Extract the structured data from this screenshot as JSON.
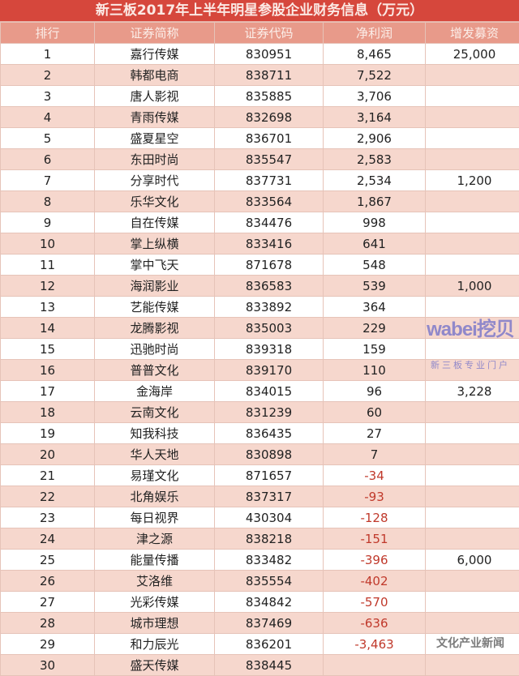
{
  "title": "新三板2017年上半年明星参股企业财务信息（万元）",
  "columns": [
    "排行",
    "证券简称",
    "证券代码",
    "净利润",
    "增发募资"
  ],
  "rows": [
    [
      "1",
      "嘉行传媒",
      "830951",
      "8,465",
      "25,000"
    ],
    [
      "2",
      "韩都电商",
      "838711",
      "7,522",
      ""
    ],
    [
      "3",
      "唐人影视",
      "835885",
      "3,706",
      ""
    ],
    [
      "4",
      "青雨传媒",
      "832698",
      "3,164",
      ""
    ],
    [
      "5",
      "盛夏星空",
      "836701",
      "2,906",
      ""
    ],
    [
      "6",
      "东田时尚",
      "835547",
      "2,583",
      ""
    ],
    [
      "7",
      "分享时代",
      "837731",
      "2,534",
      "1,200"
    ],
    [
      "8",
      "乐华文化",
      "833564",
      "1,867",
      ""
    ],
    [
      "9",
      "自在传媒",
      "834476",
      "998",
      ""
    ],
    [
      "10",
      "掌上纵横",
      "833416",
      "641",
      ""
    ],
    [
      "11",
      "掌中飞天",
      "871678",
      "548",
      ""
    ],
    [
      "12",
      "海润影业",
      "836583",
      "539",
      "1,000"
    ],
    [
      "13",
      "艺能传媒",
      "833892",
      "364",
      ""
    ],
    [
      "14",
      "龙腾影视",
      "835003",
      "229",
      ""
    ],
    [
      "15",
      "迅驰时尚",
      "839318",
      "159",
      ""
    ],
    [
      "16",
      "普普文化",
      "839170",
      "110",
      ""
    ],
    [
      "17",
      "金海岸",
      "834015",
      "96",
      "3,228"
    ],
    [
      "18",
      "云南文化",
      "831239",
      "60",
      ""
    ],
    [
      "19",
      "知我科技",
      "836435",
      "27",
      ""
    ],
    [
      "20",
      "华人天地",
      "830898",
      "7",
      ""
    ],
    [
      "21",
      "易瑾文化",
      "871657",
      "-34",
      ""
    ],
    [
      "22",
      "北角娱乐",
      "837317",
      "-93",
      ""
    ],
    [
      "23",
      "每日视界",
      "430304",
      "-128",
      ""
    ],
    [
      "24",
      "津之源",
      "838218",
      "-151",
      ""
    ],
    [
      "25",
      "能量传播",
      "833482",
      "-396",
      "6,000"
    ],
    [
      "26",
      "艾洛维",
      "835554",
      "-402",
      ""
    ],
    [
      "27",
      "光彩传媒",
      "834842",
      "-570",
      ""
    ],
    [
      "28",
      "城市理想",
      "837469",
      "-636",
      ""
    ],
    [
      "29",
      "和力辰光",
      "836201",
      "-3,463",
      ""
    ],
    [
      "30",
      "盛天传媒",
      "838445",
      "",
      ""
    ]
  ],
  "watermark": {
    "logo": "wabei挖贝",
    "tagline": "新三板专业门户",
    "source": "文化产业新闻"
  },
  "colors": {
    "title_bg": "#d6473c",
    "header_bg": "#e89a8a",
    "stripe": "#f6d7cd",
    "negative": "#c0392b"
  }
}
